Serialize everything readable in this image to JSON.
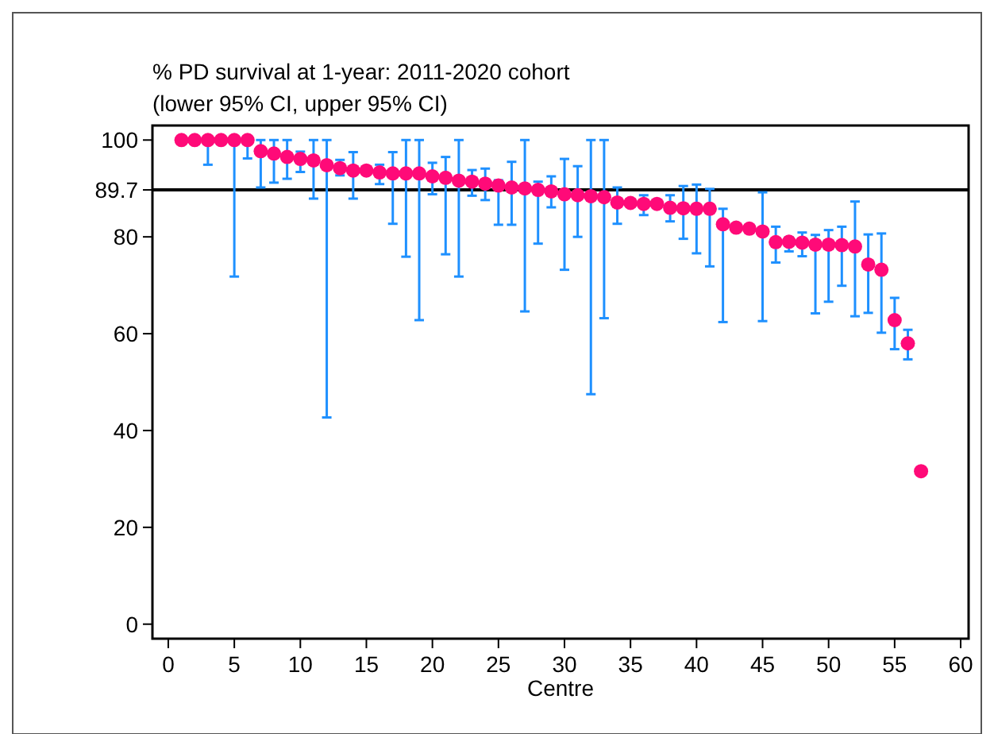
{
  "chart_data": {
    "type": "scatter",
    "title": "% PD survival at 1-year: 2011-2020 cohort",
    "subtitle": "(lower 95% CI, upper 95% CI)",
    "xlabel": "Centre",
    "x": [
      1,
      2,
      3,
      4,
      5,
      6,
      7,
      8,
      9,
      10,
      11,
      12,
      13,
      14,
      15,
      16,
      17,
      18,
      19,
      20,
      21,
      22,
      23,
      24,
      25,
      26,
      27,
      28,
      29,
      30,
      31,
      32,
      33,
      34,
      35,
      36,
      37,
      38,
      39,
      40,
      41,
      42,
      43,
      44,
      45,
      46,
      47,
      48,
      49,
      50,
      51,
      52,
      53,
      54,
      55,
      56,
      57
    ],
    "series": [
      {
        "color": "#ff0a78",
        "values": [
          100,
          100,
          100,
          100,
          100,
          100,
          97.7,
          97.2,
          96.5,
          96.1,
          95.8,
          94.8,
          94.2,
          93.7,
          93.7,
          93.3,
          93.1,
          93.1,
          93.1,
          92.5,
          92.2,
          91.6,
          91.4,
          91.0,
          90.6,
          90.2,
          90.0,
          89.7,
          89.4,
          88.8,
          88.6,
          88.4,
          88.2,
          87.1,
          87.0,
          86.8,
          86.8,
          86.0,
          85.9,
          85.8,
          85.8,
          82.6,
          81.9,
          81.7,
          81.1,
          78.9,
          79.0,
          78.8,
          78.4,
          78.4,
          78.3,
          78.0,
          74.3,
          73.2,
          62.8,
          58.0,
          31.6
        ],
        "errors": [
          null,
          null,
          [
            94.9,
            100
          ],
          null,
          [
            71.8,
            100
          ],
          [
            96.2,
            100
          ],
          [
            90.2,
            100
          ],
          [
            91.2,
            100
          ],
          [
            92,
            100
          ],
          [
            93.4,
            97.6
          ],
          [
            87.9,
            100
          ],
          [
            42.7,
            100
          ],
          [
            92.7,
            95.9
          ],
          [
            87.9,
            97.5
          ],
          null,
          [
            90.9,
            94.9
          ],
          [
            82.7,
            97.5
          ],
          [
            75.9,
            100
          ],
          [
            62.8,
            100
          ],
          [
            88.8,
            95.3
          ],
          [
            76.4,
            96.5
          ],
          [
            71.8,
            100
          ],
          [
            88.5,
            93.8
          ],
          [
            87.6,
            94.1
          ],
          [
            82.5,
            91.7
          ],
          [
            82.5,
            95.5
          ],
          [
            64.6,
            100
          ],
          [
            78.6,
            91.4
          ],
          [
            86.1,
            92.5
          ],
          [
            73.2,
            96.1
          ],
          [
            80.0,
            94.6
          ],
          [
            47.5,
            100
          ],
          [
            63.2,
            100
          ],
          [
            82.7,
            90.2
          ],
          null,
          [
            84.5,
            88.6
          ],
          null,
          [
            83.2,
            88.6
          ],
          [
            79.6,
            90.5
          ],
          [
            76.6,
            90.8
          ],
          [
            73.9,
            89.9
          ],
          [
            62.4,
            85.8
          ],
          null,
          null,
          [
            62.6,
            89.2
          ],
          [
            74.7,
            82.1
          ],
          [
            77.0,
            79.9
          ],
          [
            76.0,
            80.9
          ],
          [
            64.2,
            80.4
          ],
          [
            66.6,
            81.4
          ],
          [
            69.9,
            82.1
          ],
          [
            63.6,
            87.3
          ],
          [
            64.3,
            80.5
          ],
          [
            60.2,
            80.7
          ],
          [
            56.8,
            67.4
          ],
          [
            54.7,
            60.8
          ],
          null
        ]
      }
    ],
    "xlim": [
      -1.2,
      60.6
    ],
    "xticks": [
      0,
      5,
      10,
      15,
      20,
      25,
      30,
      35,
      40,
      45,
      50,
      55,
      60
    ],
    "ylim": [
      -3,
      103
    ],
    "yticks": [
      0,
      20,
      40,
      60,
      80,
      100
    ],
    "ref_lines": [
      {
        "axis": "y",
        "value": 89.7,
        "label": "89.7",
        "color": "#000000"
      }
    ],
    "marker": "circle"
  }
}
